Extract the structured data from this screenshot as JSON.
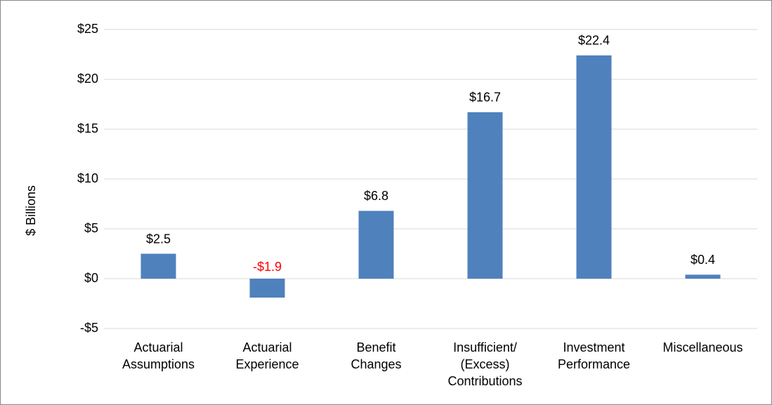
{
  "chart_data": {
    "type": "bar",
    "y_label": "$ Billions",
    "categories": [
      [
        "Actuarial",
        "Assumptions"
      ],
      [
        "Actuarial",
        "Experience"
      ],
      [
        "Benefit",
        "Changes"
      ],
      [
        "Insufficient/",
        "(Excess)",
        "Contributions"
      ],
      [
        "Investment",
        "Performance"
      ],
      [
        "Miscellaneous"
      ]
    ],
    "values": [
      2.5,
      -1.9,
      6.8,
      16.7,
      22.4,
      0.4
    ],
    "value_labels": [
      "$2.5",
      "-$1.9",
      "$6.8",
      "$16.7",
      "$22.4",
      "$0.4"
    ],
    "color": "#4f81bd",
    "negative_label_color": "#ff0000",
    "ylim": [
      -5,
      25
    ],
    "yticks": [
      {
        "value": -5,
        "label": "-$5"
      },
      {
        "value": 0,
        "label": "$0"
      },
      {
        "value": 5,
        "label": "$5"
      },
      {
        "value": 10,
        "label": "$10"
      },
      {
        "value": 15,
        "label": "$15"
      },
      {
        "value": 20,
        "label": "$20"
      },
      {
        "value": 25,
        "label": "$25"
      }
    ],
    "grid": true
  }
}
